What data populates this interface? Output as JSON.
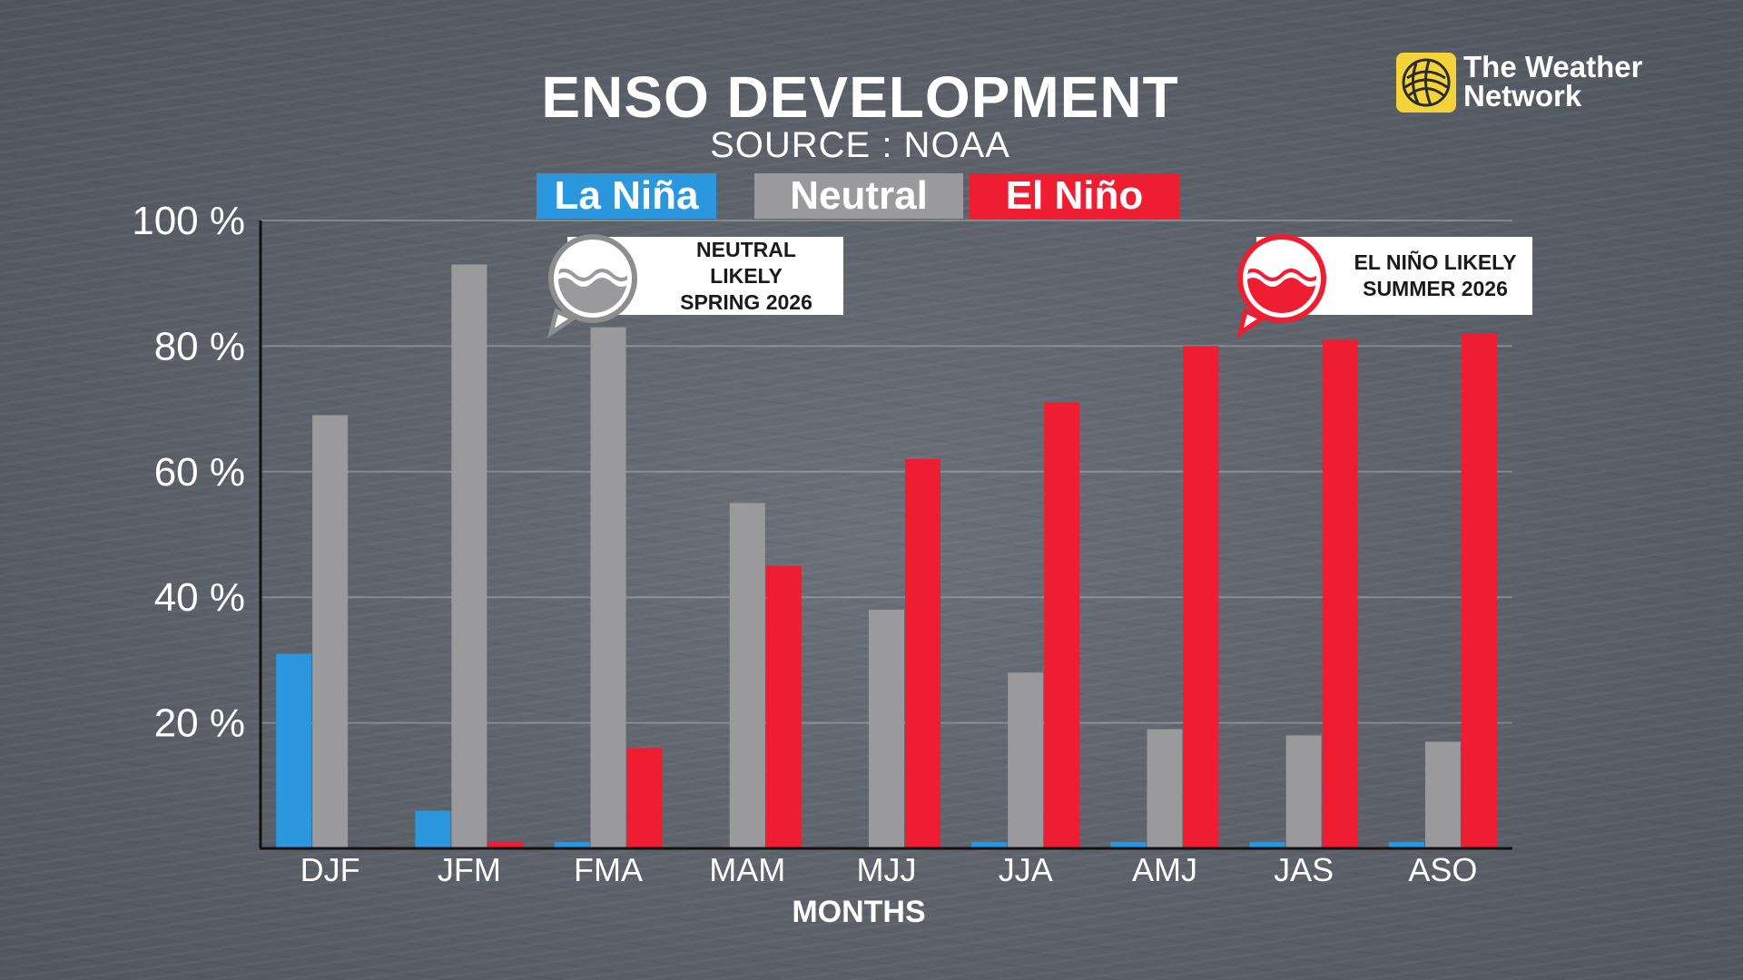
{
  "title": "ENSO DEVELOPMENT",
  "subtitle": "SOURCE : NOAA",
  "brand": {
    "line1": "The Weather",
    "line2": "Network"
  },
  "legend": [
    {
      "label": "La Niña",
      "color": "#2a97df"
    },
    {
      "label": "Neutral",
      "color": "#9a9a9c"
    },
    {
      "label": "El Niño",
      "color": "#ee1d32"
    }
  ],
  "callouts": [
    {
      "text": "NEUTRAL LIKELY\nSPRING 2026",
      "icon": "wave-bubble-icon",
      "color": "#9a9a9c"
    },
    {
      "text": "EL NIÑO LIKELY\nSUMMER 2026",
      "icon": "wave-bubble-icon",
      "color": "#ee1d32"
    }
  ],
  "chart_data": {
    "type": "bar",
    "title": "ENSO DEVELOPMENT",
    "subtitle": "SOURCE : NOAA",
    "xlabel": "MONTHS",
    "ylabel": "",
    "ylim": [
      0,
      100
    ],
    "yticks": [
      20,
      40,
      60,
      80,
      100
    ],
    "ytick_labels": [
      "20 %",
      "40 %",
      "60 %",
      "80 %",
      "100 %"
    ],
    "grid": true,
    "legend_position": "top",
    "categories": [
      "DJF",
      "JFM",
      "FMA",
      "MAM",
      "MJJ",
      "JJA",
      "AMJ",
      "JAS",
      "ASO"
    ],
    "series": [
      {
        "name": "La Niña",
        "color": "#2a97df",
        "values": [
          31,
          6,
          1,
          0,
          0,
          1,
          1,
          1,
          1
        ]
      },
      {
        "name": "Neutral",
        "color": "#9a9a9c",
        "values": [
          69,
          93,
          83,
          55,
          38,
          28,
          19,
          18,
          17
        ]
      },
      {
        "name": "El Niño",
        "color": "#ee1d32",
        "values": [
          0,
          1,
          16,
          45,
          62,
          71,
          80,
          81,
          82
        ]
      }
    ]
  }
}
